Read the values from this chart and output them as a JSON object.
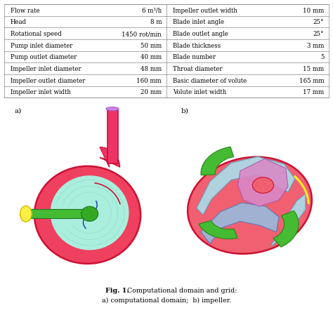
{
  "table_left": [
    [
      "Flow rate",
      "6 m³/h"
    ],
    [
      "Head",
      "8 m"
    ],
    [
      "Rotational speed",
      "1450 rot/min"
    ],
    [
      "Pump inlet diameter",
      "50 mm"
    ],
    [
      "Pump outlet diameter",
      "40 mm"
    ],
    [
      "Impeller inlet diameter",
      "48 mm"
    ],
    [
      "Impeller outlet diameter",
      "160 mm"
    ],
    [
      "Impeller inlet width",
      "20 mm"
    ]
  ],
  "table_right": [
    [
      "Impeller outlet width",
      "10 mm"
    ],
    [
      "Blade inlet angle",
      "25°"
    ],
    [
      "Blade outlet angle",
      "25°"
    ],
    [
      "Blade thickness",
      "3 mm"
    ],
    [
      "Blade number",
      "5"
    ],
    [
      "Throat diameter",
      "15 mm"
    ],
    [
      "Basic diameter of volute",
      "165 mm"
    ],
    [
      "Volute inlet width",
      "17 mm"
    ]
  ],
  "caption_bold": "Fig. 1.",
  "caption_normal": " Computational domain and grid:",
  "caption_line2": "a) computational domain;  b) impeller.",
  "label_a": "a)",
  "label_b": "b)",
  "bg_color": "#ffffff",
  "table_line_color": "#888888",
  "text_color": "#000000",
  "superscript_3": "3"
}
